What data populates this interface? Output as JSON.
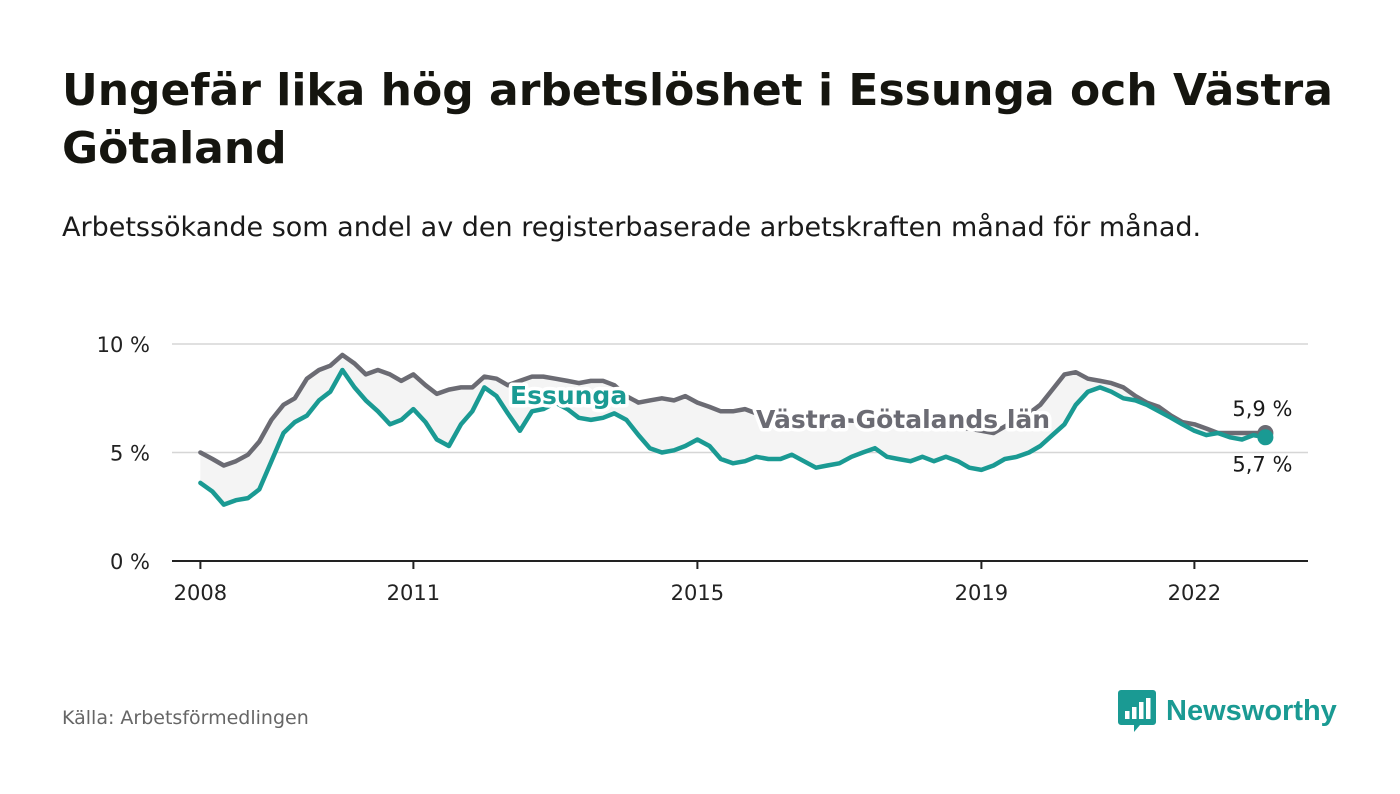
{
  "title": "Ungefär lika hög arbetslöshet i Essunga och Västra Götaland",
  "subtitle": "Arbetssökande som andel av den registerbaserade arbetskraften månad för månad.",
  "source": "Källa: Arbetsförmedlingen",
  "brand": {
    "name": "Newsworthy",
    "color": "#1a9a93",
    "icon": "bar-chart-bubble-icon"
  },
  "chart_data": {
    "type": "line",
    "title": "",
    "xlabel": "",
    "ylabel": "",
    "xlim": [
      2007.6,
      2023.6
    ],
    "ylim": [
      0,
      10
    ],
    "y_ticks": [
      0,
      5,
      10
    ],
    "y_tick_labels": [
      "0 %",
      "5 %",
      "10 %"
    ],
    "x_ticks": [
      2008,
      2011,
      2015,
      2019,
      2022
    ],
    "x_tick_labels": [
      "2008",
      "2011",
      "2015",
      "2019",
      "2022"
    ],
    "grid": true,
    "band_fill": "#f4f4f4",
    "series": [
      {
        "name": "Västra Götalands län",
        "color": "#6b6b73",
        "end_label": "5,9 %",
        "x": [
          2008.0,
          2008.17,
          2008.33,
          2008.5,
          2008.67,
          2008.83,
          2009.0,
          2009.17,
          2009.33,
          2009.5,
          2009.67,
          2009.83,
          2010.0,
          2010.17,
          2010.33,
          2010.5,
          2010.67,
          2010.83,
          2011.0,
          2011.17,
          2011.33,
          2011.5,
          2011.67,
          2011.83,
          2012.0,
          2012.17,
          2012.33,
          2012.5,
          2012.67,
          2012.83,
          2013.0,
          2013.17,
          2013.33,
          2013.5,
          2013.67,
          2013.83,
          2014.0,
          2014.17,
          2014.33,
          2014.5,
          2014.67,
          2014.83,
          2015.0,
          2015.17,
          2015.33,
          2015.5,
          2015.67,
          2015.83,
          2016.0,
          2016.5,
          2017.0,
          2017.5,
          2018.0,
          2018.5,
          2018.83,
          2019.0,
          2019.17,
          2019.33,
          2019.5,
          2019.67,
          2019.83,
          2020.0,
          2020.17,
          2020.33,
          2020.5,
          2020.67,
          2020.83,
          2021.0,
          2021.17,
          2021.33,
          2021.5,
          2021.67,
          2021.83,
          2022.0,
          2022.17,
          2022.33,
          2022.5,
          2022.67,
          2022.83,
          2023.0
        ],
        "y": [
          5.0,
          4.7,
          4.4,
          4.6,
          4.9,
          5.5,
          6.5,
          7.2,
          7.5,
          8.4,
          8.8,
          9.0,
          9.5,
          9.1,
          8.6,
          8.8,
          8.6,
          8.3,
          8.6,
          8.1,
          7.7,
          7.9,
          8.0,
          8.0,
          8.5,
          8.4,
          8.1,
          8.3,
          8.5,
          8.5,
          8.4,
          8.3,
          8.2,
          8.3,
          8.3,
          8.1,
          7.6,
          7.3,
          7.4,
          7.5,
          7.4,
          7.6,
          7.3,
          7.1,
          6.9,
          6.9,
          7.0,
          6.8,
          6.7,
          6.6,
          6.5,
          6.4,
          6.3,
          6.2,
          6.1,
          6.0,
          5.9,
          6.2,
          6.5,
          6.8,
          7.2,
          7.9,
          8.6,
          8.7,
          8.4,
          8.3,
          8.2,
          8.0,
          7.6,
          7.3,
          7.1,
          6.7,
          6.4,
          6.3,
          6.1,
          5.9,
          5.9,
          5.9,
          5.9,
          5.9
        ]
      },
      {
        "name": "Essunga",
        "color": "#1a9a93",
        "end_label": "5,7 %",
        "x": [
          2008.0,
          2008.17,
          2008.33,
          2008.5,
          2008.67,
          2008.83,
          2009.0,
          2009.17,
          2009.33,
          2009.5,
          2009.67,
          2009.83,
          2010.0,
          2010.17,
          2010.33,
          2010.5,
          2010.67,
          2010.83,
          2011.0,
          2011.17,
          2011.33,
          2011.5,
          2011.67,
          2011.83,
          2012.0,
          2012.17,
          2012.33,
          2012.5,
          2012.67,
          2012.83,
          2013.0,
          2013.17,
          2013.33,
          2013.5,
          2013.67,
          2013.83,
          2014.0,
          2014.17,
          2014.33,
          2014.5,
          2014.67,
          2014.83,
          2015.0,
          2015.17,
          2015.33,
          2015.5,
          2015.67,
          2015.83,
          2016.0,
          2016.17,
          2016.33,
          2016.5,
          2016.67,
          2016.83,
          2017.0,
          2017.17,
          2017.33,
          2017.5,
          2017.67,
          2017.83,
          2018.0,
          2018.17,
          2018.33,
          2018.5,
          2018.67,
          2018.83,
          2019.0,
          2019.17,
          2019.33,
          2019.5,
          2019.67,
          2019.83,
          2020.0,
          2020.17,
          2020.33,
          2020.5,
          2020.67,
          2020.83,
          2021.0,
          2021.17,
          2021.33,
          2021.5,
          2021.67,
          2021.83,
          2022.0,
          2022.17,
          2022.33,
          2022.5,
          2022.67,
          2022.83,
          2023.0
        ],
        "y": [
          3.6,
          3.2,
          2.6,
          2.8,
          2.9,
          3.3,
          4.6,
          5.9,
          6.4,
          6.7,
          7.4,
          7.8,
          8.8,
          8.0,
          7.4,
          6.9,
          6.3,
          6.5,
          7.0,
          6.4,
          5.6,
          5.3,
          6.3,
          6.9,
          8.0,
          7.6,
          6.8,
          6.0,
          6.9,
          7.0,
          7.3,
          7.0,
          6.6,
          6.5,
          6.6,
          6.8,
          6.5,
          5.8,
          5.2,
          5.0,
          5.1,
          5.3,
          5.6,
          5.3,
          4.7,
          4.5,
          4.6,
          4.8,
          4.7,
          4.7,
          4.9,
          4.6,
          4.3,
          4.4,
          4.5,
          4.8,
          5.0,
          5.2,
          4.8,
          4.7,
          4.6,
          4.8,
          4.6,
          4.8,
          4.6,
          4.3,
          4.2,
          4.4,
          4.7,
          4.8,
          5.0,
          5.3,
          5.8,
          6.3,
          7.2,
          7.8,
          8.0,
          7.8,
          7.5,
          7.4,
          7.2,
          6.9,
          6.6,
          6.3,
          6.0,
          5.8,
          5.9,
          5.7,
          5.6,
          5.8,
          5.7
        ]
      }
    ]
  }
}
